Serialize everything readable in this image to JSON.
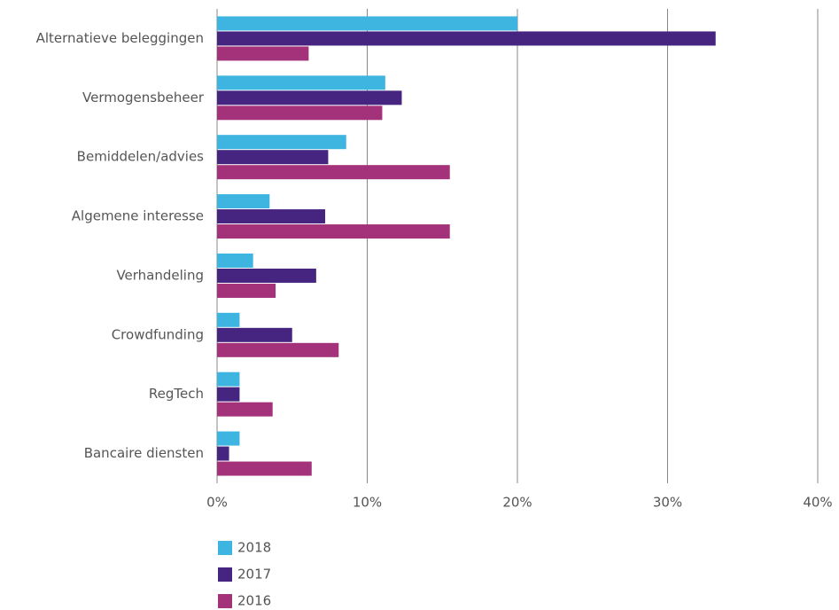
{
  "chart_data": {
    "type": "hbar",
    "categories": [
      "Alternatieve beleggingen",
      "Vermogensbeheer",
      "Bemiddelen/advies",
      "Algemene interesse",
      "Verhandeling",
      "Crowdfunding",
      "RegTech",
      "Bancaire diensten"
    ],
    "series": [
      {
        "name": "2018",
        "color": "#3db5e0",
        "values": [
          20.0,
          11.2,
          8.6,
          3.5,
          2.4,
          1.5,
          1.5,
          1.5
        ]
      },
      {
        "name": "2017",
        "color": "#462580",
        "values": [
          33.2,
          12.3,
          7.4,
          7.2,
          6.6,
          5.0,
          1.5,
          0.8
        ]
      },
      {
        "name": "2016",
        "color": "#a3327a",
        "values": [
          6.1,
          11.0,
          15.5,
          15.5,
          3.9,
          8.1,
          3.7,
          6.3
        ]
      }
    ],
    "xlim": [
      0,
      40
    ],
    "xticks": [
      {
        "value": 0,
        "label": "0%"
      },
      {
        "value": 10,
        "label": "10%"
      },
      {
        "value": 20,
        "label": "20%"
      },
      {
        "value": 30,
        "label": "30%"
      },
      {
        "value": 40,
        "label": "40%"
      }
    ],
    "grid": true
  }
}
